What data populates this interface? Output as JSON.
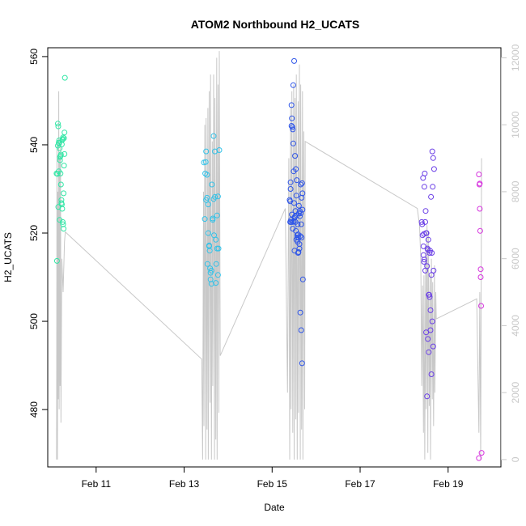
{
  "chart_data": {
    "type": "scatter",
    "title": "ATOM2 Northbound H2_UCATS",
    "xlabel": "Date",
    "ylabel": "H2_UCATS",
    "y2label": "",
    "xlim": [
      9.9,
      20.2
    ],
    "ylim": [
      467,
      562
    ],
    "y2lim": [
      -220,
      12300
    ],
    "x_ticks": [
      {
        "value": 11,
        "label": "Feb 11"
      },
      {
        "value": 13,
        "label": "Feb 13"
      },
      {
        "value": 15,
        "label": "Feb 15"
      },
      {
        "value": 17,
        "label": "Feb 17"
      },
      {
        "value": 19,
        "label": "Feb 19"
      }
    ],
    "y_ticks": [
      480,
      500,
      520,
      540,
      560
    ],
    "y2_ticks": [
      0,
      2000,
      4000,
      6000,
      8000,
      10000,
      12000
    ],
    "grid": false,
    "box": true,
    "colors": {
      "altitude_line": "#c8c8c8",
      "axis": "#000000",
      "right_axis": "#c8c8c8",
      "flight_1": "#33e6a6",
      "flight_2": "#33c2e8",
      "flight_3": "#2e55e8",
      "flight_4": "#6a3ee6",
      "flight_5": "#d633de"
    },
    "series": [
      {
        "color_key": "flight_1",
        "x": [
          10.13,
          10.14,
          10.15,
          10.16,
          10.17,
          10.18,
          10.19,
          10.2,
          10.21,
          10.22,
          10.23,
          10.24,
          10.25,
          10.26,
          10.27,
          10.28,
          10.29,
          10.1,
          10.12,
          10.14,
          10.16,
          10.18,
          10.2,
          10.22,
          10.24,
          10.26,
          10.11,
          10.15,
          10.19,
          10.23,
          10.27,
          10.13,
          10.17,
          10.21,
          10.25,
          10.28
        ],
        "y": [
          544.8,
          544.2,
          540.5,
          541.0,
          539.2,
          536.5,
          533.5,
          531.0,
          527.5,
          526.5,
          525.5,
          522.5,
          522.0,
          521.0,
          541.5,
          542.8,
          555.2,
          533.5,
          533.4,
          525.9,
          540.3,
          537.2,
          537.8,
          540.1,
          541.3,
          529.0,
          513.7,
          534.0,
          537.5,
          541.1,
          535.3,
          539.8,
          523.0,
          526.8,
          541.7,
          537.9
        ]
      },
      {
        "color_key": "flight_2",
        "x": [
          13.45,
          13.48,
          13.5,
          13.52,
          13.55,
          13.57,
          13.6,
          13.62,
          13.65,
          13.67,
          13.7,
          13.72,
          13.75,
          13.77,
          13.8,
          13.5,
          13.55,
          13.6,
          13.65,
          13.7,
          13.75,
          13.47,
          13.53,
          13.58,
          13.63,
          13.68,
          13.73,
          13.78,
          13.52,
          13.57,
          13.62,
          13.67,
          13.72,
          13.77,
          13.49,
          13.59
        ],
        "y": [
          536.0,
          533.5,
          538.5,
          528.0,
          526.5,
          517.0,
          511.0,
          508.5,
          523.0,
          542.0,
          538.5,
          518.5,
          516.5,
          510.5,
          538.8,
          527.5,
          520.0,
          509.5,
          523.3,
          528.2,
          524.0,
          523.2,
          513.0,
          516.0,
          531.0,
          519.5,
          513.0,
          516.5,
          533.2,
          517.2,
          511.5,
          527.7,
          508.7,
          528.3,
          536.1,
          512.0
        ]
      },
      {
        "color_key": "flight_3",
        "x": [
          15.4,
          15.42,
          15.44,
          15.46,
          15.48,
          15.5,
          15.52,
          15.54,
          15.56,
          15.58,
          15.6,
          15.62,
          15.64,
          15.66,
          15.68,
          15.7,
          15.41,
          15.43,
          15.45,
          15.47,
          15.49,
          15.51,
          15.53,
          15.55,
          15.57,
          15.59,
          15.61,
          15.63,
          15.65,
          15.67,
          15.69,
          15.42,
          15.46,
          15.5,
          15.54,
          15.58,
          15.62,
          15.66,
          15.44,
          15.48,
          15.52,
          15.56,
          15.6,
          15.64,
          15.68,
          15.43,
          15.47,
          15.51,
          15.55,
          15.59,
          15.63,
          15.67,
          15.45,
          15.53,
          15.61,
          15.49,
          15.57,
          15.65,
          15.41,
          15.69
        ],
        "y": [
          527.5,
          531.5,
          549.0,
          544.0,
          553.5,
          559.0,
          537.5,
          534.5,
          524.0,
          522.0,
          519.0,
          516.5,
          502.0,
          498.0,
          490.5,
          509.5,
          522.5,
          523.0,
          546.0,
          543.5,
          534.0,
          523.5,
          522.5,
          528.5,
          519.5,
          515.5,
          524.5,
          525.0,
          531.0,
          528.0,
          529.0,
          530.0,
          522.5,
          526.8,
          520.5,
          518.0,
          517.5,
          522.0,
          544.3,
          540.3,
          523.8,
          532.0,
          515.7,
          519.3,
          531.3,
          522.5,
          521.0,
          516.0,
          518.5,
          519.7,
          523.8,
          519.0,
          524.2,
          525.0,
          526.2,
          522.6,
          519.0,
          524.5,
          527.2,
          525.3
        ]
      },
      {
        "color_key": "flight_4",
        "x": [
          18.4,
          18.42,
          18.44,
          18.46,
          18.48,
          18.5,
          18.52,
          18.54,
          18.56,
          18.58,
          18.6,
          18.62,
          18.64,
          18.66,
          18.68,
          18.43,
          18.47,
          18.51,
          18.55,
          18.59,
          18.63,
          18.67,
          18.41,
          18.45,
          18.49,
          18.53,
          18.57,
          18.61,
          18.65,
          18.44,
          18.48,
          18.52,
          18.56,
          18.6,
          18.64,
          18.46,
          18.5,
          18.54,
          18.58,
          18.62,
          18.66,
          18.45
        ],
        "y": [
          522.5,
          519.5,
          515.0,
          514.0,
          511.5,
          497.5,
          483.0,
          496.0,
          493.0,
          505.5,
          498.0,
          488.0,
          538.5,
          537.0,
          534.5,
          532.5,
          533.5,
          520.0,
          518.5,
          516.0,
          515.5,
          511.5,
          522.0,
          519.8,
          525.0,
          516.5,
          506.0,
          528.2,
          530.5,
          517.0,
          522.5,
          512.5,
          506.0,
          502.5,
          500.0,
          530.5,
          520.0,
          516.2,
          515.5,
          510.5,
          494.3,
          513.5
        ]
      },
      {
        "color_key": "flight_5",
        "x": [
          19.7,
          19.71,
          19.72,
          19.73,
          19.74,
          19.75,
          19.76,
          19.7,
          19.72,
          19.74
        ],
        "y": [
          533.3,
          531.0,
          525.5,
          520.5,
          511.8,
          503.5,
          470.2,
          469.0,
          531.2,
          510.0
        ]
      }
    ],
    "altitude_line": {
      "x": [
        10.1,
        10.11,
        10.12,
        10.13,
        10.14,
        10.15,
        10.16,
        10.17,
        10.18,
        10.19,
        10.2,
        10.22,
        10.25,
        10.28,
        10.3,
        13.4,
        13.42,
        13.44,
        13.45,
        13.47,
        13.49,
        13.5,
        13.52,
        13.54,
        13.55,
        13.57,
        13.59,
        13.6,
        13.62,
        13.64,
        13.65,
        13.67,
        13.69,
        13.7,
        13.72,
        13.74,
        13.75,
        13.77,
        13.79,
        13.8,
        13.82,
        15.3,
        15.35,
        15.38,
        15.4,
        15.42,
        15.43,
        15.45,
        15.47,
        15.49,
        15.5,
        15.52,
        15.54,
        15.55,
        15.57,
        15.59,
        15.6,
        15.62,
        15.64,
        15.65,
        15.67,
        15.69,
        15.7,
        15.72,
        15.74,
        15.75,
        18.3,
        18.35,
        18.38,
        18.4,
        18.42,
        18.44,
        18.45,
        18.47,
        18.49,
        18.5,
        18.52,
        18.54,
        18.55,
        18.57,
        18.59,
        18.6,
        18.62,
        18.64,
        18.65,
        18.67,
        18.69,
        18.7,
        18.72,
        18.73,
        19.65,
        19.7,
        19.72,
        19.74,
        19.76
      ],
      "y": [
        0,
        9500,
        0,
        8000,
        1800,
        11000,
        1500,
        9000,
        2200,
        9600,
        1100,
        6000,
        5000,
        6500,
        6800,
        3000,
        0,
        8000,
        1000,
        10000,
        0,
        10200,
        900,
        10500,
        0,
        11000,
        1700,
        11500,
        0,
        9500,
        2200,
        11500,
        0,
        10800,
        600,
        12000,
        0,
        11200,
        1400,
        12200,
        3100,
        7500,
        2000,
        9000,
        0,
        10500,
        1500,
        11000,
        800,
        11200,
        0,
        10800,
        1200,
        11500,
        0,
        10700,
        1400,
        11800,
        0,
        11200,
        900,
        11000,
        0,
        9800,
        1500,
        9500,
        7500,
        7000,
        6000,
        2200,
        5200,
        800,
        5500,
        0,
        6200,
        1500,
        7000,
        200,
        6800,
        1600,
        5500,
        0,
        6000,
        1800,
        5300,
        1000,
        5800,
        2000,
        5000,
        4200,
        4800,
        800,
        5000,
        0,
        9000
      ]
    }
  }
}
